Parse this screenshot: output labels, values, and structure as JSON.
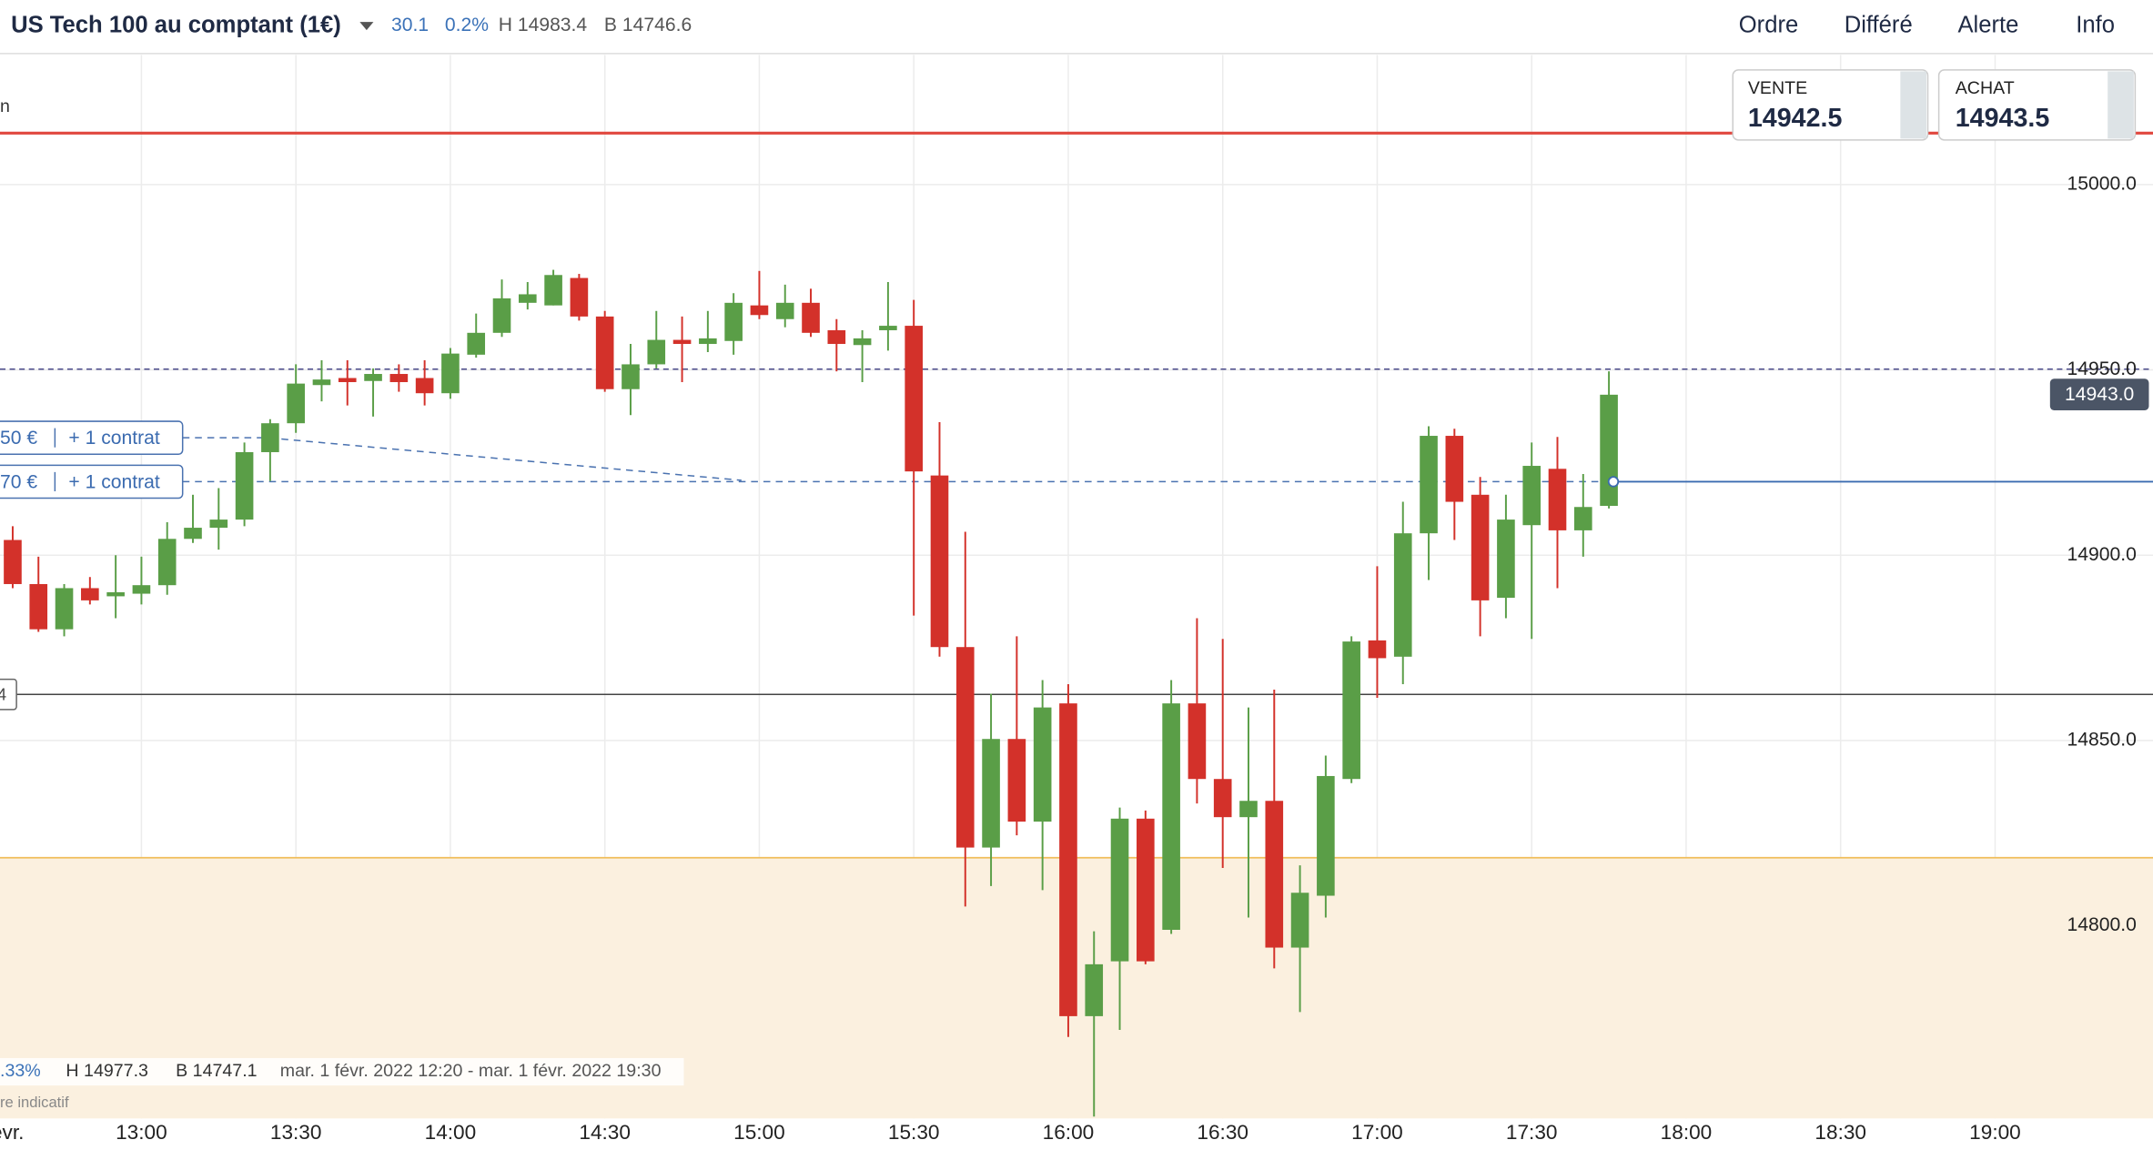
{
  "header": {
    "instrument": "US Tech 100 au comptant (1€)",
    "change": "30.1",
    "change_pct": "0.2%",
    "high": "H 14983.4",
    "low": "B 14746.6"
  },
  "menu": [
    "Ordre",
    "Différé",
    "Alerte",
    "Info"
  ],
  "quotes": {
    "sell_label": "VENTE",
    "sell": "14942.5",
    "buy_label": "ACHAT",
    "buy": "14943.5"
  },
  "side_text": "n",
  "orders": [
    {
      "amount": "50 €",
      "size": "+ 1 contrat"
    },
    {
      "amount": "70 €",
      "size": "+ 1 contrat"
    }
  ],
  "level_box": "4",
  "info": {
    "change_pct": ".33%",
    "high": "H 14977.3",
    "low": "B 14747.1",
    "range": "mar. 1 févr. 2022 12:20 - mar. 1 févr. 2022 19:30",
    "note": "re indicatif"
  },
  "chart_data": {
    "type": "candlestick",
    "up_color": "#5a9e47",
    "down_color": "#d3312a",
    "grid": true,
    "price_tag": "14943.0",
    "ylim": [
      14748,
      15035
    ],
    "yticks": [
      {
        "value": 14800,
        "label": "14800.0"
      },
      {
        "value": 14850,
        "label": "14850.0"
      },
      {
        "value": 14900,
        "label": "14900.0"
      },
      {
        "value": 14950,
        "label": "14950.0"
      },
      {
        "value": 15000,
        "label": "15000.0"
      }
    ],
    "xticks": [
      "févr.",
      "13:00",
      "13:30",
      "14:00",
      "14:30",
      "15:00",
      "15:30",
      "16:00",
      "16:30",
      "17:00",
      "17:30",
      "18:00",
      "18:30",
      "19:00"
    ],
    "x": [
      "12:35",
      "12:40",
      "12:45",
      "12:50",
      "12:55",
      "13:00",
      "13:05",
      "13:10",
      "13:15",
      "13:20",
      "13:25",
      "13:30",
      "13:35",
      "13:40",
      "13:45",
      "13:50",
      "13:55",
      "14:00",
      "14:05",
      "14:10",
      "14:15",
      "14:20",
      "14:25",
      "14:30",
      "14:35",
      "14:40",
      "14:45",
      "14:50",
      "14:55",
      "15:00",
      "15:05",
      "15:10",
      "15:15",
      "15:20",
      "15:25",
      "15:30",
      "15:35",
      "15:40",
      "15:45",
      "15:50",
      "15:55",
      "16:00",
      "16:05",
      "16:10",
      "16:15",
      "16:20",
      "16:25",
      "16:30",
      "16:35",
      "16:40",
      "16:45",
      "16:50",
      "16:55",
      "17:00",
      "17:05",
      "17:10",
      "17:15",
      "17:20",
      "17:25",
      "17:30",
      "17:35",
      "17:40",
      "17:45"
    ],
    "open": [
      14904.1,
      14892.2,
      14880,
      14891.1,
      14888.9,
      14889.6,
      14891.9,
      14904.4,
      14907.4,
      14909.6,
      14927.8,
      14935.6,
      14945.9,
      14947.8,
      14947,
      14948.9,
      14947.8,
      14943.7,
      14954.1,
      14960,
      14968.1,
      14967.4,
      14974.8,
      14964.4,
      14944.8,
      14951.5,
      14958.1,
      14957,
      14957.8,
      14967.4,
      14963.7,
      14968.1,
      14960.7,
      14956.7,
      14960.7,
      14961.9,
      14921.5,
      14875.2,
      14821.1,
      14850.4,
      14828.1,
      14860,
      14775.6,
      14790.4,
      14828.9,
      14798.9,
      14860,
      14839.6,
      14829.3,
      14833.7,
      14794.1,
      14808.1,
      14839.6,
      14877,
      14872.6,
      14905.9,
      14932.2,
      14916.3,
      14888.5,
      14908.1,
      14923.3,
      14906.7,
      14913.3
    ],
    "high": [
      14907.8,
      14899.6,
      14892.2,
      14894.1,
      14900,
      14899.6,
      14908.9,
      14916.3,
      14918.1,
      14930.4,
      14936.7,
      14951.5,
      14952.6,
      14952.6,
      14950.4,
      14951.5,
      14952.6,
      14955.9,
      14965.2,
      14974.4,
      14973.7,
      14977,
      14975.9,
      14965.9,
      14957,
      14965.9,
      14964.4,
      14965.9,
      14970.7,
      14976.7,
      14973,
      14971.9,
      14963.7,
      14960.7,
      14973.7,
      14968.9,
      14935.9,
      14906.3,
      14862.6,
      14878.1,
      14866.3,
      14865.2,
      14798.5,
      14831.9,
      14831.1,
      14866.3,
      14883,
      14877.4,
      14858.9,
      14863.7,
      14816.3,
      14845.9,
      14878.1,
      14897,
      14914.4,
      14934.8,
      14934.1,
      14921.1,
      14916.3,
      14930.4,
      14931.9,
      14921.9,
      14949.6
    ],
    "low": [
      14891.1,
      14879.3,
      14878.1,
      14886.7,
      14883,
      14886.7,
      14889.3,
      14903.3,
      14901.5,
      14907.8,
      14920,
      14933,
      14941.5,
      14940.4,
      14937.4,
      14944.1,
      14940.4,
      14942.2,
      14953.3,
      14958.9,
      14966.3,
      14967.4,
      14963.3,
      14944.1,
      14937.8,
      14950.4,
      14946.7,
      14954.8,
      14954.1,
      14963.7,
      14961.5,
      14958.9,
      14949.6,
      14946.7,
      14955.2,
      14883.7,
      14872.6,
      14805.2,
      14810.7,
      14824.4,
      14809.6,
      14770,
      14748.5,
      14771.9,
      14789.6,
      14797.8,
      14833,
      14815.6,
      14802.2,
      14788.5,
      14776.7,
      14802.2,
      14838.5,
      14861.5,
      14865.2,
      14893.3,
      14904.1,
      14878.1,
      14883,
      14877.4,
      14891.1,
      14899.6,
      14912.6
    ],
    "close": [
      14892.2,
      14880,
      14891.1,
      14887.8,
      14890,
      14891.9,
      14904.4,
      14907.4,
      14909.6,
      14927.8,
      14935.6,
      14946.3,
      14947.4,
      14946.7,
      14948.9,
      14946.7,
      14943.7,
      14954.4,
      14960,
      14969.3,
      14970.4,
      14975.6,
      14964.4,
      14944.8,
      14951.5,
      14958.1,
      14957,
      14958.5,
      14968.1,
      14964.8,
      14968.1,
      14960,
      14957,
      14958.5,
      14961.9,
      14922.6,
      14875.2,
      14821.1,
      14850.4,
      14828.1,
      14858.9,
      14775.6,
      14789.6,
      14828.9,
      14790.4,
      14860,
      14839.6,
      14829.3,
      14833.7,
      14794.1,
      14808.9,
      14840.4,
      14876.7,
      14872.2,
      14905.9,
      14932.2,
      14914.4,
      14887.8,
      14909.6,
      14924.1,
      14906.7,
      14913,
      14943.3
    ]
  }
}
